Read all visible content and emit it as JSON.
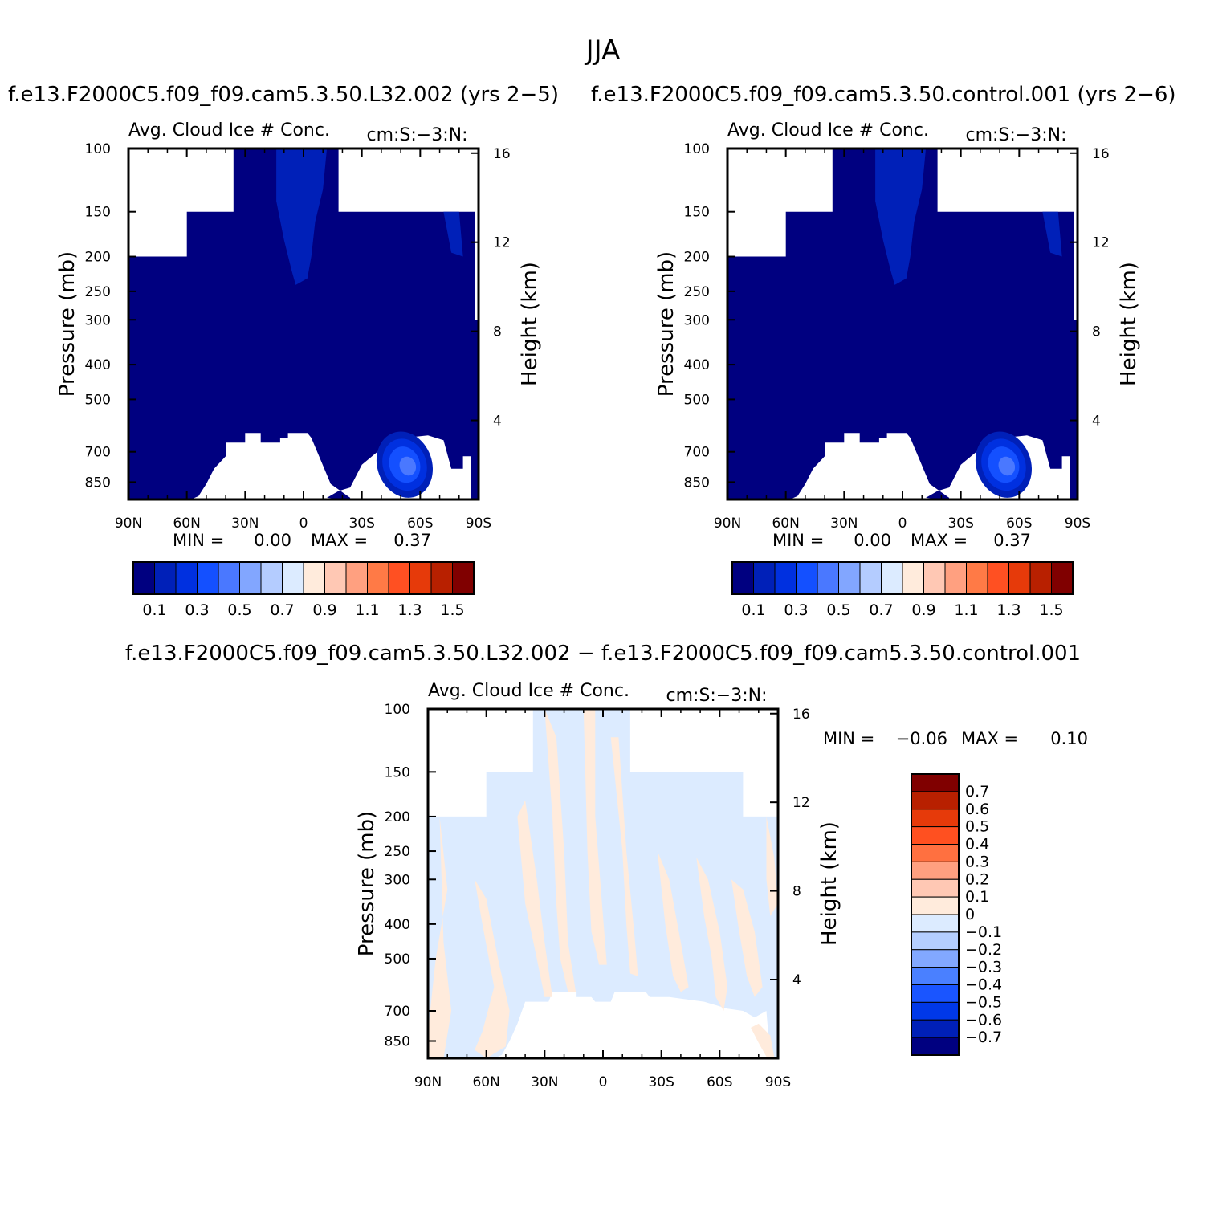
{
  "season": "JJA",
  "colors": {
    "abs_palette": [
      "#000080",
      "#0020b8",
      "#0030e0",
      "#1450ff",
      "#4a78ff",
      "#82a6ff",
      "#b4ccff",
      "#dcebff",
      "#ffebdc",
      "#ffc8b4",
      "#ffa080",
      "#ff7a46",
      "#ff5022",
      "#e63a0a",
      "#b82000",
      "#800000"
    ],
    "diff_palette": [
      "#000080",
      "#0020b8",
      "#0038e8",
      "#1a55ff",
      "#4a80ff",
      "#82a8ff",
      "#b4ceff",
      "#dcebff",
      "#ffebdc",
      "#ffc8b4",
      "#ffa080",
      "#ff7040",
      "#ff5020",
      "#e63a0a",
      "#b82000",
      "#800000"
    ]
  },
  "chart_data": [
    {
      "type": "heatmap",
      "panel": "case-1",
      "title": "f.e13.F2000C5.f09_f09.cam5.3.50.L32.002 (yrs 2−5)",
      "subtitle_left": "Avg. Cloud Ice # Conc.",
      "subtitle_right": "cm:S:−3:N:",
      "ylabel": "Pressure (mb)",
      "ylabel_right": "Height (km)",
      "xticks": [
        "90N",
        "60N",
        "30N",
        "0",
        "30S",
        "60S",
        "90S"
      ],
      "xlim": [
        90,
        -90
      ],
      "yticks": [
        100,
        150,
        200,
        250,
        300,
        400,
        500,
        700,
        850
      ],
      "ylim": [
        100,
        950
      ],
      "height_ticks": [
        16,
        12,
        8,
        4
      ],
      "min_label": "MIN =",
      "min_value": "0.00",
      "max_label": "MAX =",
      "max_value": "0.37",
      "colorbar_labels": [
        "0.1",
        "0.3",
        "0.5",
        "0.7",
        "0.9",
        "1.1",
        "1.3",
        "1.5"
      ],
      "colorbar_levels": [
        0,
        0.1,
        0.2,
        0.3,
        0.4,
        0.5,
        0.6,
        0.7,
        0.8,
        0.9,
        1.0,
        1.1,
        1.2,
        1.3,
        1.4,
        1.5
      ],
      "field_max": 0.37
    },
    {
      "type": "heatmap",
      "panel": "case-2",
      "title": "f.e13.F2000C5.f09_f09.cam5.3.50.control.001 (yrs 2−6)",
      "subtitle_left": "Avg. Cloud Ice # Conc.",
      "subtitle_right": "cm:S:−3:N:",
      "ylabel": "Pressure (mb)",
      "ylabel_right": "Height (km)",
      "xticks": [
        "90N",
        "60N",
        "30N",
        "0",
        "30S",
        "60S",
        "90S"
      ],
      "xlim": [
        90,
        -90
      ],
      "yticks": [
        100,
        150,
        200,
        250,
        300,
        400,
        500,
        700,
        850
      ],
      "ylim": [
        100,
        950
      ],
      "height_ticks": [
        16,
        12,
        8,
        4
      ],
      "min_label": "MIN =",
      "min_value": "0.00",
      "max_label": "MAX =",
      "max_value": "0.37",
      "colorbar_labels": [
        "0.1",
        "0.3",
        "0.5",
        "0.7",
        "0.9",
        "1.1",
        "1.3",
        "1.5"
      ],
      "colorbar_levels": [
        0,
        0.1,
        0.2,
        0.3,
        0.4,
        0.5,
        0.6,
        0.7,
        0.8,
        0.9,
        1.0,
        1.1,
        1.2,
        1.3,
        1.4,
        1.5
      ],
      "field_max": 0.37
    },
    {
      "type": "heatmap",
      "panel": "difference",
      "title": "f.e13.F2000C5.f09_f09.cam5.3.50.L32.002 − f.e13.F2000C5.f09_f09.cam5.3.50.control.001",
      "subtitle_left": "Avg. Cloud Ice # Conc.",
      "subtitle_right": "cm:S:−3:N:",
      "ylabel": "Pressure (mb)",
      "ylabel_right": "Height (km)",
      "xticks": [
        "90N",
        "60N",
        "30N",
        "0",
        "30S",
        "60S",
        "90S"
      ],
      "xlim": [
        90,
        -90
      ],
      "yticks": [
        100,
        150,
        200,
        250,
        300,
        400,
        500,
        700,
        850
      ],
      "ylim": [
        100,
        950
      ],
      "height_ticks": [
        16,
        12,
        8,
        4
      ],
      "min_label": "MIN =",
      "min_value": "−0.06",
      "max_label": "MAX =",
      "max_value": "0.10",
      "colorbar_labels": [
        "0.7",
        "0.6",
        "0.5",
        "0.4",
        "0.3",
        "0.2",
        "0.1",
        "0",
        "−0.1",
        "−0.2",
        "−0.3",
        "−0.4",
        "−0.5",
        "−0.6",
        "−0.7"
      ],
      "colorbar_levels": [
        -0.7,
        -0.6,
        -0.5,
        -0.4,
        -0.3,
        -0.2,
        -0.1,
        0,
        0.1,
        0.2,
        0.3,
        0.4,
        0.5,
        0.6,
        0.7
      ]
    }
  ]
}
